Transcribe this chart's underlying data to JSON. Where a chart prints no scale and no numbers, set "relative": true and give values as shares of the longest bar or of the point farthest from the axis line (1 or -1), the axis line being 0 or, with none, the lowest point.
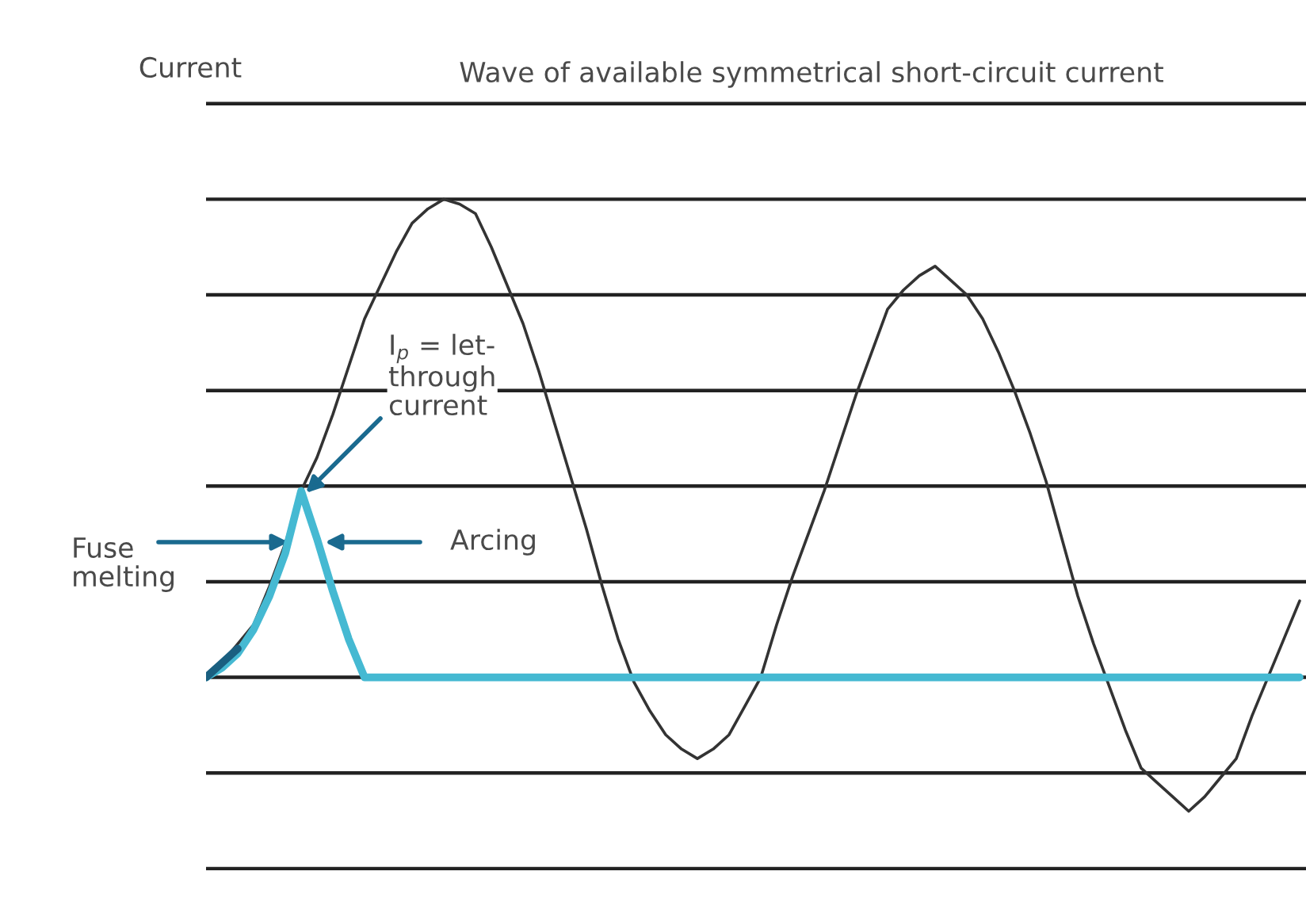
{
  "chart_data": {
    "type": "line",
    "relative": true,
    "title": "Wave of available symmetrical short-circuit current",
    "ylabel": "Current",
    "grid": "y",
    "marker": "none",
    "line_style": "solid",
    "categories": [
      null,
      null,
      null,
      null,
      null,
      null,
      null,
      null,
      null,
      null,
      null,
      null,
      null,
      null,
      null,
      null,
      null,
      null,
      null,
      null,
      null,
      null,
      null,
      null,
      null,
      null,
      null,
      null,
      null,
      null,
      null,
      null,
      null,
      null,
      null,
      null,
      null,
      null,
      null,
      null,
      null,
      null,
      null,
      null,
      null,
      null,
      null,
      null,
      null,
      null,
      null,
      null,
      null,
      null,
      null,
      null,
      null,
      null,
      null,
      null,
      null,
      null,
      null,
      null,
      null,
      null,
      null,
      null,
      null,
      null
    ],
    "series": [
      {
        "color": "#333333",
        "values": [
          0,
          0.03,
          0.07,
          0.11,
          0.19,
          0.28,
          0.39,
          0.46,
          0.55,
          0.65,
          0.75,
          0.82,
          0.89,
          0.95,
          0.98,
          1.0,
          0.99,
          0.97,
          0.9,
          0.82,
          0.74,
          0.64,
          0.53,
          0.42,
          0.31,
          0.19,
          0.08,
          -0.01,
          -0.07,
          -0.12,
          -0.15,
          -0.17,
          -0.15,
          -0.12,
          -0.06,
          0,
          0.11,
          0.21,
          0.3,
          0.39,
          0.49,
          0.59,
          0.68,
          0.77,
          0.81,
          0.84,
          0.86,
          0.83,
          0.8,
          0.75,
          0.68,
          0.6,
          0.51,
          0.41,
          0.29,
          0.17,
          0.07,
          -0.02,
          -0.11,
          -0.19,
          -0.22,
          -0.25,
          -0.28,
          -0.25,
          -0.21,
          -0.17,
          -0.08,
          0,
          0.08,
          0.16
        ]
      },
      {
        "color": "#45b9d2",
        "values": [
          0,
          0.02,
          0.05,
          0.1,
          0.17,
          0.26,
          0.39,
          0.29,
          0.18,
          0.08,
          0,
          0,
          0,
          0,
          0,
          0,
          0,
          0,
          0,
          0,
          0,
          0,
          0,
          0,
          0,
          0,
          0,
          0,
          0,
          0,
          0,
          0,
          0,
          0,
          0,
          0,
          0,
          0,
          0,
          0,
          0,
          0,
          0,
          0,
          0,
          0,
          0,
          0,
          0,
          0,
          0,
          0,
          0,
          0,
          0,
          0,
          0,
          0,
          0,
          0,
          0,
          0,
          0,
          0,
          0,
          0,
          0,
          0,
          0,
          0
        ]
      },
      {
        "color": "#1a5f80",
        "values": [
          0,
          0.03,
          0.06,
          null,
          null,
          null,
          null,
          null,
          null,
          null,
          null,
          null,
          null,
          null,
          null,
          null,
          null,
          null,
          null,
          null,
          null,
          null,
          null,
          null,
          null,
          null,
          null,
          null,
          null,
          null,
          null,
          null,
          null,
          null,
          null,
          null,
          null,
          null,
          null,
          null,
          null,
          null,
          null,
          null,
          null,
          null,
          null,
          null,
          null,
          null,
          null,
          null,
          null,
          null,
          null,
          null,
          null,
          null,
          null,
          null,
          null,
          null,
          null,
          null,
          null,
          null,
          null,
          null,
          null,
          null
        ]
      }
    ],
    "annotations": [
      "I$_{p}$ = let-\nthrough\ncurrent",
      "Fuse\nmelting",
      "Arcing"
    ]
  }
}
